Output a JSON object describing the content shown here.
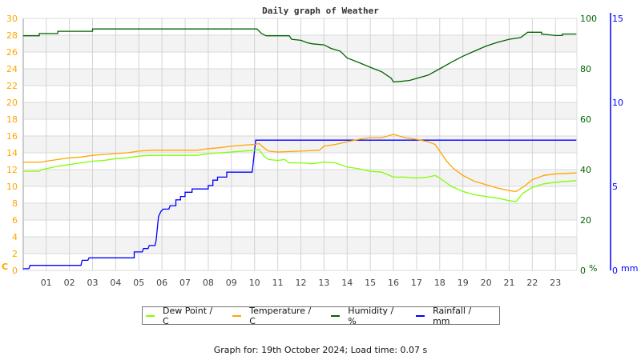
{
  "chart_data": {
    "type": "line",
    "title": "Daily graph of Weather",
    "x_ticks": [
      "01",
      "02",
      "03",
      "04",
      "05",
      "06",
      "07",
      "08",
      "09",
      "10",
      "11",
      "12",
      "13",
      "14",
      "15",
      "16",
      "17",
      "18",
      "19",
      "20",
      "21",
      "22",
      "23"
    ],
    "xlim": [
      0,
      23.9
    ],
    "axes": {
      "left": {
        "label": "C",
        "ylim": [
          0,
          30
        ],
        "ticks": [
          "0",
          "2",
          "4",
          "6",
          "8",
          "10",
          "12",
          "14",
          "16",
          "18",
          "20",
          "22",
          "24",
          "26",
          "28",
          "30"
        ],
        "color": "#ffa500"
      },
      "humidity": {
        "label": "%",
        "ylim": [
          0,
          100
        ],
        "ticks": [
          "0",
          "20",
          "40",
          "60",
          "80",
          "100"
        ],
        "color": "#006400"
      },
      "rain": {
        "label": "mm",
        "ylim": [
          0,
          15
        ],
        "ticks": [
          "0",
          "5",
          "10",
          "15"
        ],
        "color": "#0000ff"
      }
    },
    "grid": true,
    "legend_position": "bottom",
    "series": [
      {
        "name": "Dew Point / C",
        "axis": "left",
        "color": "#80ff00",
        "points": [
          [
            0,
            11.8
          ],
          [
            0.7,
            11.8
          ],
          [
            0.8,
            12.0
          ],
          [
            1,
            12.1
          ],
          [
            1.5,
            12.4
          ],
          [
            2,
            12.6
          ],
          [
            2.5,
            12.8
          ],
          [
            3,
            13.0
          ],
          [
            3.5,
            13.1
          ],
          [
            4,
            13.3
          ],
          [
            4.5,
            13.4
          ],
          [
            5,
            13.6
          ],
          [
            5.5,
            13.7
          ],
          [
            6,
            13.7
          ],
          [
            7,
            13.7
          ],
          [
            7.5,
            13.7
          ],
          [
            8,
            13.9
          ],
          [
            9,
            14.1
          ],
          [
            10,
            14.3
          ],
          [
            10.2,
            14.4
          ],
          [
            10.4,
            13.6
          ],
          [
            10.6,
            13.2
          ],
          [
            11,
            13.1
          ],
          [
            11.3,
            13.2
          ],
          [
            11.5,
            12.8
          ],
          [
            12,
            12.8
          ],
          [
            12.5,
            12.7
          ],
          [
            13,
            12.9
          ],
          [
            13.5,
            12.8
          ],
          [
            14,
            12.3
          ],
          [
            14.5,
            12.1
          ],
          [
            15,
            11.8
          ],
          [
            15.5,
            11.7
          ],
          [
            16,
            11.1
          ],
          [
            16.5,
            11.1
          ],
          [
            17,
            11.0
          ],
          [
            17.5,
            11.1
          ],
          [
            17.8,
            11.3
          ],
          [
            18,
            11.0
          ],
          [
            18.5,
            10.0
          ],
          [
            19,
            9.4
          ],
          [
            19.5,
            9.0
          ],
          [
            20,
            8.8
          ],
          [
            20.5,
            8.6
          ],
          [
            21,
            8.3
          ],
          [
            21.3,
            8.2
          ],
          [
            21.6,
            9.2
          ],
          [
            22,
            9.9
          ],
          [
            22.5,
            10.3
          ],
          [
            23,
            10.5
          ],
          [
            23.9,
            10.7
          ]
        ]
      },
      {
        "name": "Temperature / C",
        "axis": "left",
        "color": "#ffa500",
        "points": [
          [
            0,
            12.9
          ],
          [
            0.8,
            12.9
          ],
          [
            1,
            13.0
          ],
          [
            1.5,
            13.2
          ],
          [
            2,
            13.4
          ],
          [
            2.5,
            13.5
          ],
          [
            3,
            13.7
          ],
          [
            3.5,
            13.8
          ],
          [
            4,
            13.9
          ],
          [
            4.5,
            14.0
          ],
          [
            5,
            14.2
          ],
          [
            5.5,
            14.3
          ],
          [
            6,
            14.3
          ],
          [
            7,
            14.3
          ],
          [
            7.5,
            14.3
          ],
          [
            8,
            14.5
          ],
          [
            8.5,
            14.6
          ],
          [
            9,
            14.8
          ],
          [
            9.5,
            14.9
          ],
          [
            10,
            15.0
          ],
          [
            10.2,
            15.1
          ],
          [
            10.4,
            14.6
          ],
          [
            10.6,
            14.2
          ],
          [
            11,
            14.1
          ],
          [
            12,
            14.2
          ],
          [
            12.8,
            14.3
          ],
          [
            13,
            14.8
          ],
          [
            13.5,
            15.0
          ],
          [
            14,
            15.3
          ],
          [
            14.5,
            15.6
          ],
          [
            15,
            15.8
          ],
          [
            15.5,
            15.8
          ],
          [
            16,
            16.2
          ],
          [
            16.5,
            15.8
          ],
          [
            17,
            15.6
          ],
          [
            17.5,
            15.3
          ],
          [
            17.8,
            15.0
          ],
          [
            18,
            14.2
          ],
          [
            18.3,
            13.0
          ],
          [
            18.6,
            12.1
          ],
          [
            19,
            11.3
          ],
          [
            19.5,
            10.6
          ],
          [
            20,
            10.2
          ],
          [
            20.5,
            9.8
          ],
          [
            21,
            9.5
          ],
          [
            21.3,
            9.4
          ],
          [
            21.7,
            10.1
          ],
          [
            22,
            10.8
          ],
          [
            22.5,
            11.3
          ],
          [
            23,
            11.5
          ],
          [
            23.9,
            11.6
          ]
        ]
      },
      {
        "name": "Humidity / %",
        "axis": "humidity",
        "color": "#006400",
        "points": [
          [
            0,
            93.1
          ],
          [
            0.7,
            93.1
          ],
          [
            0.7,
            94.0
          ],
          [
            1.5,
            94.0
          ],
          [
            1.5,
            94.9
          ],
          [
            3,
            94.9
          ],
          [
            3,
            95.8
          ],
          [
            10.1,
            95.8
          ],
          [
            10.3,
            94.0
          ],
          [
            10.5,
            93.1
          ],
          [
            11.5,
            93.1
          ],
          [
            11.6,
            91.7
          ],
          [
            12,
            91.3
          ],
          [
            12.3,
            90.3
          ],
          [
            12.5,
            89.9
          ],
          [
            13,
            89.5
          ],
          [
            13.3,
            88.1
          ],
          [
            13.7,
            87.0
          ],
          [
            14,
            84.3
          ],
          [
            14.5,
            82.5
          ],
          [
            15,
            80.6
          ],
          [
            15.5,
            78.8
          ],
          [
            15.9,
            76.3
          ],
          [
            16,
            74.8
          ],
          [
            16.3,
            75.0
          ],
          [
            16.7,
            75.4
          ],
          [
            17,
            76.2
          ],
          [
            17.5,
            77.5
          ],
          [
            18,
            80.0
          ],
          [
            18.5,
            82.6
          ],
          [
            19,
            85.0
          ],
          [
            19.5,
            87.0
          ],
          [
            20,
            89.0
          ],
          [
            20.5,
            90.5
          ],
          [
            21,
            91.7
          ],
          [
            21.5,
            92.4
          ],
          [
            21.8,
            94.5
          ],
          [
            22.4,
            94.5
          ],
          [
            22.4,
            93.8
          ],
          [
            23,
            93.2
          ],
          [
            23.3,
            93.2
          ],
          [
            23.3,
            93.8
          ],
          [
            23.9,
            93.8
          ]
        ]
      },
      {
        "name": "Rainfall / mm",
        "axis": "rain",
        "color": "#0000ff",
        "points": [
          [
            0,
            0.1
          ],
          [
            0.25,
            0.1
          ],
          [
            0.3,
            0.3
          ],
          [
            2.5,
            0.3
          ],
          [
            2.55,
            0.6
          ],
          [
            2.8,
            0.6
          ],
          [
            2.85,
            0.75
          ],
          [
            4.8,
            0.75
          ],
          [
            4.8,
            1.1
          ],
          [
            5.15,
            1.1
          ],
          [
            5.2,
            1.3
          ],
          [
            5.4,
            1.3
          ],
          [
            5.45,
            1.48
          ],
          [
            5.7,
            1.48
          ],
          [
            5.75,
            1.8
          ],
          [
            5.85,
            3.2
          ],
          [
            5.95,
            3.5
          ],
          [
            6.05,
            3.65
          ],
          [
            6.3,
            3.65
          ],
          [
            6.35,
            3.85
          ],
          [
            6.6,
            3.85
          ],
          [
            6.6,
            4.2
          ],
          [
            6.8,
            4.2
          ],
          [
            6.8,
            4.4
          ],
          [
            7,
            4.4
          ],
          [
            7,
            4.65
          ],
          [
            7.3,
            4.65
          ],
          [
            7.3,
            4.85
          ],
          [
            8,
            4.85
          ],
          [
            8,
            5.05
          ],
          [
            8.2,
            5.05
          ],
          [
            8.2,
            5.37
          ],
          [
            8.4,
            5.37
          ],
          [
            8.4,
            5.55
          ],
          [
            8.8,
            5.55
          ],
          [
            8.8,
            5.85
          ],
          [
            9.9,
            5.85
          ],
          [
            10.05,
            7.75
          ],
          [
            23.9,
            7.75
          ]
        ]
      }
    ]
  },
  "footer": "Graph for: 19th October 2024; Load time: 0.07 s"
}
